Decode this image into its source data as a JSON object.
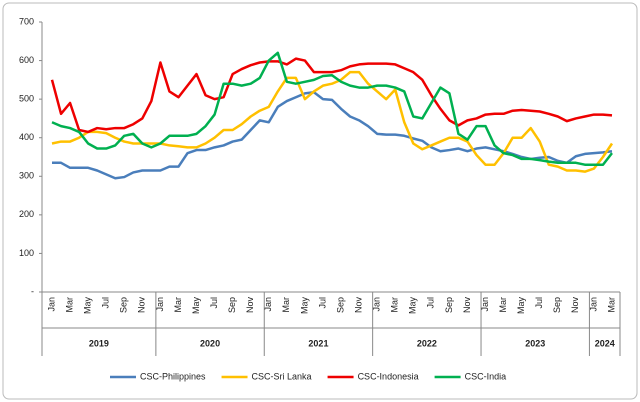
{
  "chart_data": {
    "type": "line",
    "categories": [
      "Jan",
      null,
      "Mar",
      null,
      "May",
      null,
      "Jul",
      null,
      "Sep",
      null,
      "Nov",
      null,
      "Jan",
      null,
      "Mar",
      null,
      "May",
      null,
      "Jul",
      null,
      "Sep",
      null,
      "Nov",
      null,
      "Jan",
      null,
      "Mar",
      null,
      "May",
      null,
      "Jul",
      null,
      "Sep",
      null,
      "Nov",
      null,
      "Jan",
      null,
      "Mar",
      null,
      "May",
      null,
      "Jul",
      null,
      "Sep",
      null,
      "Nov",
      null,
      "Jan",
      null,
      "Mar",
      null,
      "May",
      null,
      "Jul",
      null,
      "Sep",
      null,
      "Nov",
      null,
      "Jan",
      null,
      "Mar"
    ],
    "year_labels": [
      "2019",
      "2020",
      "2021",
      "2022",
      "2023",
      "2024"
    ],
    "ylim": [
      0,
      700
    ],
    "yticks": [
      {
        "value": 0,
        "label": "-"
      },
      100,
      200,
      300,
      400,
      500,
      600,
      700
    ],
    "legend": "bottom",
    "series": [
      {
        "name": "CSC-Philippines",
        "color": "#4a7ebb",
        "values": [
          335,
          335,
          322,
          322,
          322,
          315,
          305,
          295,
          298,
          310,
          315,
          315,
          315,
          325,
          325,
          360,
          368,
          368,
          375,
          380,
          390,
          395,
          420,
          445,
          440,
          480,
          495,
          505,
          515,
          518,
          500,
          498,
          475,
          455,
          445,
          430,
          410,
          408,
          408,
          405,
          398,
          392,
          375,
          365,
          368,
          372,
          365,
          372,
          375,
          370,
          365,
          358,
          350,
          345,
          348,
          350,
          340,
          335,
          352,
          358,
          360,
          362,
          365
        ]
      },
      {
        "name": "CSC-Sri Lanka",
        "color": "#ffc000",
        "values": [
          385,
          390,
          390,
          400,
          415,
          415,
          412,
          400,
          390,
          385,
          385,
          385,
          385,
          380,
          378,
          375,
          375,
          385,
          400,
          420,
          420,
          435,
          455,
          470,
          480,
          520,
          555,
          555,
          500,
          520,
          535,
          540,
          550,
          570,
          570,
          540,
          520,
          500,
          525,
          440,
          385,
          370,
          380,
          390,
          400,
          400,
          390,
          355,
          330,
          330,
          360,
          400,
          400,
          425,
          390,
          330,
          325,
          315,
          315,
          312,
          320,
          350,
          385
        ]
      },
      {
        "name": "CSC-Indonesia",
        "color": "#ee0000",
        "values": [
          550,
          462,
          490,
          420,
          415,
          425,
          422,
          425,
          425,
          435,
          450,
          495,
          595,
          520,
          505,
          535,
          565,
          510,
          500,
          505,
          565,
          578,
          588,
          595,
          598,
          598,
          590,
          605,
          600,
          570,
          570,
          570,
          575,
          585,
          590,
          592,
          592,
          592,
          590,
          580,
          570,
          550,
          510,
          475,
          445,
          432,
          445,
          450,
          460,
          462,
          462,
          470,
          472,
          470,
          468,
          462,
          455,
          443,
          450,
          455,
          460,
          460,
          458
        ]
      },
      {
        "name": "CSC-India",
        "color": "#00b050",
        "values": [
          440,
          430,
          425,
          415,
          385,
          372,
          372,
          380,
          405,
          410,
          385,
          375,
          385,
          405,
          405,
          405,
          410,
          430,
          460,
          540,
          540,
          535,
          540,
          555,
          600,
          620,
          545,
          540,
          545,
          550,
          560,
          562,
          545,
          535,
          530,
          530,
          535,
          535,
          530,
          520,
          455,
          450,
          490,
          530,
          515,
          410,
          395,
          430,
          430,
          380,
          360,
          355,
          345,
          345,
          342,
          338,
          335,
          335,
          335,
          330,
          330,
          330,
          360
        ]
      }
    ]
  }
}
